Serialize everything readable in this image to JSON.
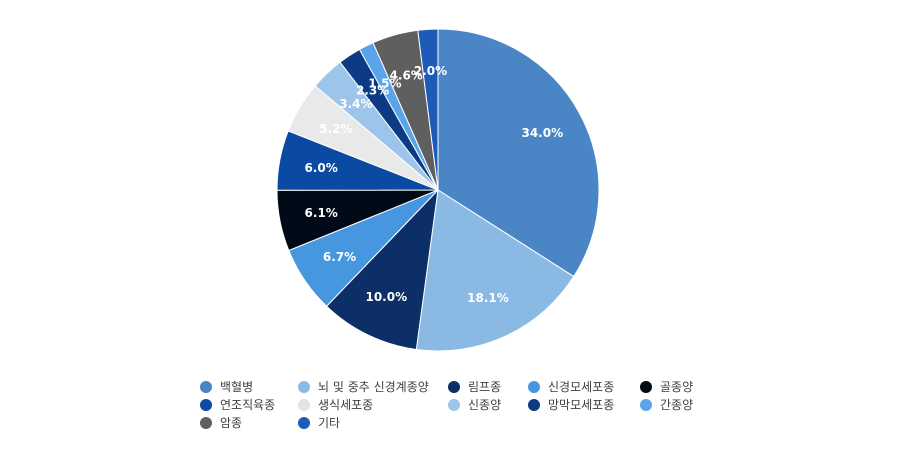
{
  "chart_data": {
    "type": "pie",
    "title": "",
    "legend_position": "bottom",
    "slices": [
      {
        "label": "백혈병",
        "value": 34.0,
        "display": "34.0%",
        "color": "#4a86c5",
        "label_color": "#ffffff"
      },
      {
        "label": "뇌 및 중추 신경계종양",
        "value": 18.1,
        "display": "18.1%",
        "color": "#8ab9e4",
        "label_color": "#ffffff"
      },
      {
        "label": "림프종",
        "value": 10.0,
        "display": "10.0%",
        "color": "#0b2f66",
        "label_color": "#ffffff"
      },
      {
        "label": "신경모세포종",
        "value": 6.7,
        "display": "6.7%",
        "color": "#4797e0",
        "label_color": "#ffffff"
      },
      {
        "label": "골종양",
        "value": 6.1,
        "display": "6.1%",
        "color": "#000b17",
        "label_color": "#ffffff"
      },
      {
        "label": "연조직육종",
        "value": 6.0,
        "display": "6.0%",
        "color": "#0a4aa3",
        "label_color": "#ffffff"
      },
      {
        "label": "생식세포종",
        "value": 5.2,
        "display": "5.2%",
        "color": "#e9e9e9",
        "label_color": "#ffffff"
      },
      {
        "label": "신종양",
        "value": 3.4,
        "display": "3.4%",
        "color": "#9dc5ea",
        "label_color": "#ffffff"
      },
      {
        "label": "망막모세포종",
        "value": 2.3,
        "display": "2.3%",
        "color": "#0d3a84",
        "label_color": "#ffffff"
      },
      {
        "label": "간종양",
        "value": 1.5,
        "display": "1.5%",
        "color": "#5aa5ea",
        "label_color": "#ffffff"
      },
      {
        "label": "암종",
        "value": 4.6,
        "display": "4.6%",
        "color": "#5f5f5f",
        "label_color": "#ffffff"
      },
      {
        "label": "기타",
        "value": 2.0,
        "display": "2.0%",
        "color": "#1c5bb8",
        "label_color": "#ffffff"
      }
    ]
  }
}
